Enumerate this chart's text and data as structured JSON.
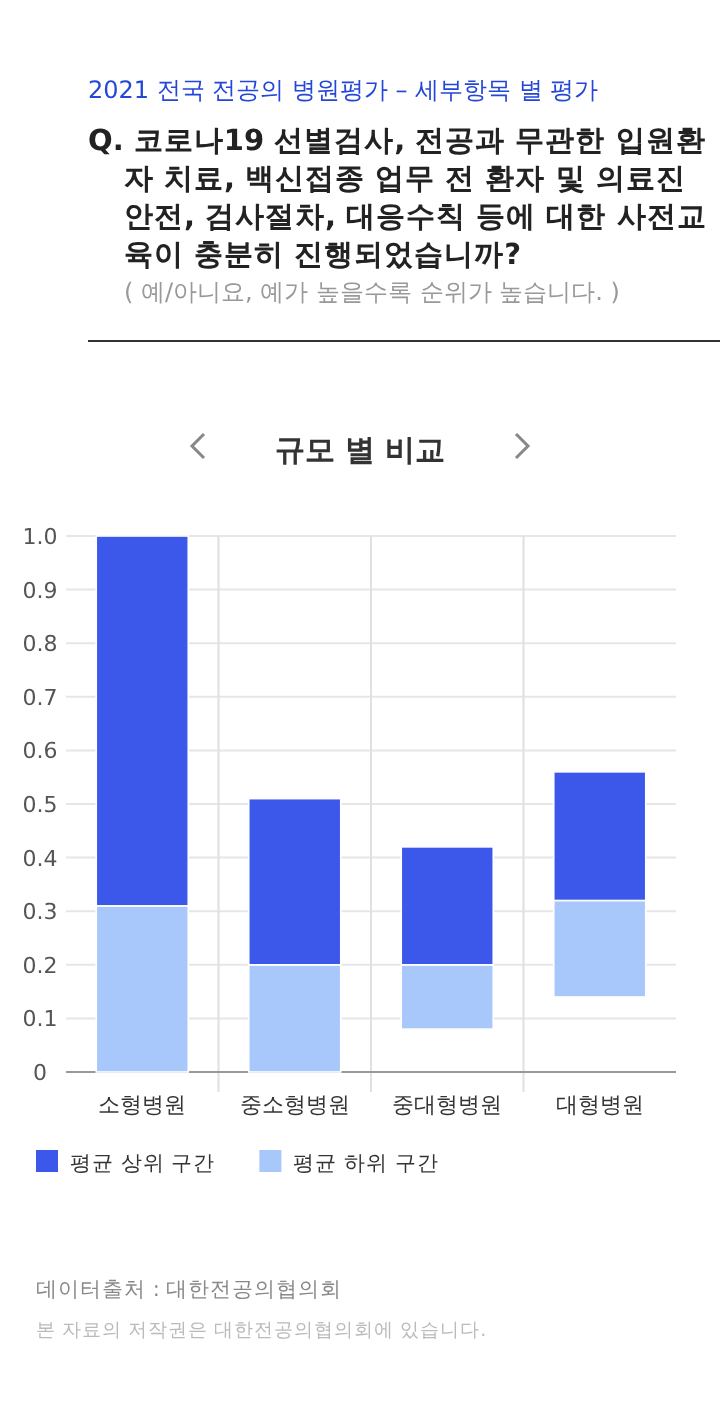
{
  "chart_data": {
    "type": "bar",
    "title": "2021 전국 전공의 병원평가 – 세부항목 별 평가",
    "subtitle": "Q. 코로나19 선별검사, 전공과 무관한 입원환자 치료, 백신접종 업무 전 환자 및 의료진 안전, 검사절차, 대응수칙 등에 대한 사전교육이 충분히 진행되었습니까?",
    "annotations": [
      "( 예/아니요, 예가 높을수록 순위가 높습니다. )",
      "규모 별 비교",
      "데이터출처 : 대한전공의협의회",
      "본 자료의 저작권은 대한전공의협의회에 있습니다."
    ],
    "categories": [
      "소형병원",
      "중소형병원",
      "중대형병원",
      "대형병원"
    ],
    "stacked": true,
    "series": [
      {
        "name": "평균 하위 구간",
        "color": "#a8c8fc",
        "base": [
          0,
          0,
          0.08,
          0.14
        ],
        "values": [
          0.31,
          0.2,
          0.12,
          0.18
        ]
      },
      {
        "name": "평균 상위 구간",
        "color": "#3c58ea",
        "values": [
          0.69,
          0.31,
          0.22,
          0.24
        ]
      }
    ],
    "ylim": [
      0,
      1
    ],
    "yticks": [
      0,
      0.1,
      0.2,
      0.3,
      0.4,
      0.5,
      0.6,
      0.7,
      0.8,
      0.9,
      {
        "value": 1,
        "label": "1.0"
      }
    ],
    "grid": true,
    "legend": "bottom"
  }
}
